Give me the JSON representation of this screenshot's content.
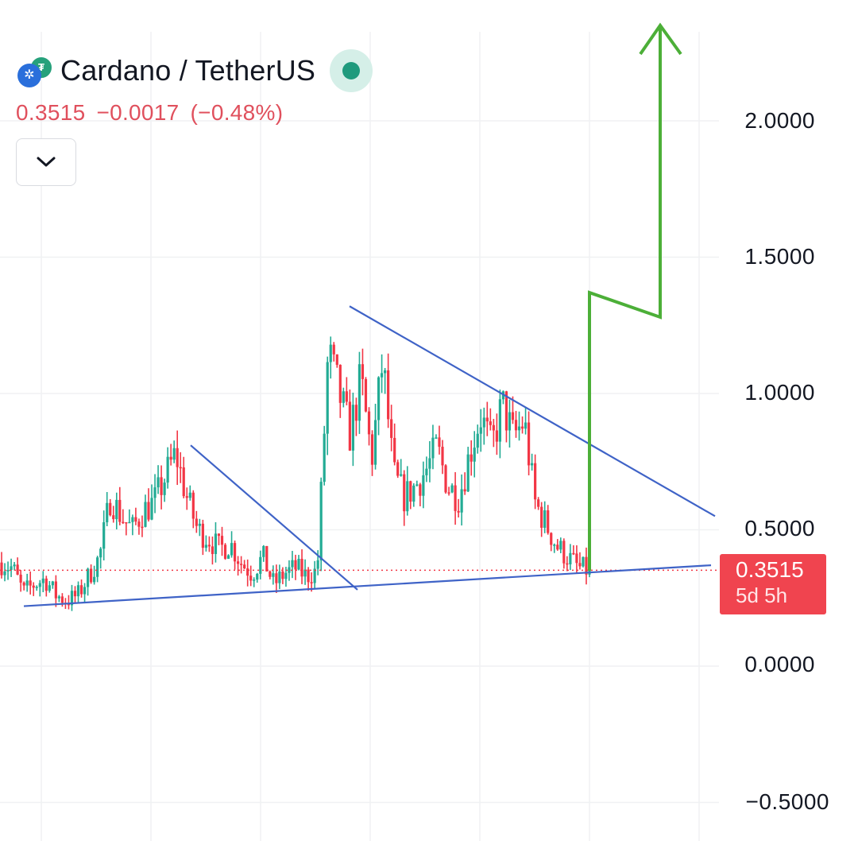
{
  "header": {
    "title": "Cardano / TetherUS",
    "last_price": "0.3515",
    "change": "−0.0017",
    "change_pct": "(−0.48%)"
  },
  "price_tag": {
    "price": "0.3515",
    "countdown": "5d 5h"
  },
  "colors": {
    "up": "#22ab94",
    "down": "#f23645",
    "trendline": "#3f63c7",
    "arrow": "#4caf38",
    "price_line": "#f23645",
    "grid": "#f0f1f3"
  },
  "icons": {
    "logo": "cardano-tether-icon",
    "status": "market-status-icon",
    "toggle": "chevron-down-icon"
  },
  "chart_data": {
    "type": "candlestick",
    "symbol": "Cardano / TetherUS",
    "ylim": [
      -0.6,
      2.5
    ],
    "y_ticks": [
      "2.0000",
      "1.5000",
      "1.0000",
      "0.5000",
      "0.0000",
      "−0.5000"
    ],
    "y_tick_values": [
      2.0,
      1.5,
      1.0,
      0.5,
      0.0,
      -0.5
    ],
    "last_price": 0.3515,
    "grid": true,
    "price_path": [
      0.38,
      0.36,
      0.27,
      0.3,
      0.32,
      0.26,
      0.24,
      0.26,
      0.33,
      0.4,
      0.62,
      0.55,
      0.5,
      0.57,
      0.6,
      0.69,
      0.78,
      0.62,
      0.5,
      0.47,
      0.43,
      0.45,
      0.38,
      0.34,
      0.4,
      0.3,
      0.34,
      0.36,
      0.33,
      0.35,
      1.15,
      1.0,
      0.85,
      1.05,
      0.76,
      1.12,
      0.7,
      0.62,
      0.66,
      0.72,
      0.8,
      0.66,
      0.62,
      0.78,
      0.92,
      0.8,
      0.96,
      0.84,
      0.9,
      0.6,
      0.52,
      0.44,
      0.4,
      0.36,
      0.35
    ],
    "price_x_range": [
      "start",
      "end"
    ],
    "trendlines": [
      {
        "name": "support",
        "from": [
          0.0,
          0.22
        ],
        "to": [
          1.0,
          0.37
        ]
      },
      {
        "name": "descending-1",
        "from": [
          0.0,
          0.81
        ],
        "to": [
          1.0,
          0.28
        ]
      },
      {
        "name": "descending-2",
        "from": [
          0.0,
          1.32
        ],
        "to": [
          1.0,
          0.55
        ]
      }
    ],
    "projection_arrow": [
      0.35,
      1.37,
      1.28,
      2.35
    ]
  }
}
